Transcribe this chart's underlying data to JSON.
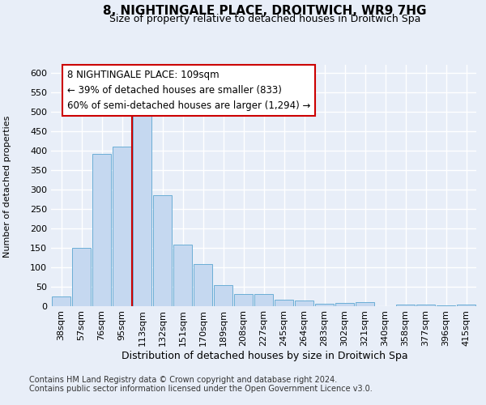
{
  "title": "8, NIGHTINGALE PLACE, DROITWICH, WR9 7HG",
  "subtitle": "Size of property relative to detached houses in Droitwich Spa",
  "xlabel": "Distribution of detached houses by size in Droitwich Spa",
  "ylabel": "Number of detached properties",
  "categories": [
    "38sqm",
    "57sqm",
    "76sqm",
    "95sqm",
    "113sqm",
    "132sqm",
    "151sqm",
    "170sqm",
    "189sqm",
    "208sqm",
    "227sqm",
    "245sqm",
    "264sqm",
    "283sqm",
    "302sqm",
    "321sqm",
    "340sqm",
    "358sqm",
    "377sqm",
    "396sqm",
    "415sqm"
  ],
  "values": [
    24,
    148,
    390,
    410,
    497,
    285,
    158,
    108,
    53,
    30,
    30,
    16,
    13,
    6,
    8,
    9,
    0,
    4,
    4,
    1,
    4
  ],
  "bar_color": "#c5d8f0",
  "bar_edge_color": "#6baed6",
  "vline_index": 4,
  "vline_color": "#cc0000",
  "annotation_line1": "8 NIGHTINGALE PLACE: 109sqm",
  "annotation_line2": "← 39% of detached houses are smaller (833)",
  "annotation_line3": "60% of semi-detached houses are larger (1,294) →",
  "ylim": [
    0,
    620
  ],
  "yticks": [
    0,
    50,
    100,
    150,
    200,
    250,
    300,
    350,
    400,
    450,
    500,
    550,
    600
  ],
  "footer_line1": "Contains HM Land Registry data © Crown copyright and database right 2024.",
  "footer_line2": "Contains public sector information licensed under the Open Government Licence v3.0.",
  "bg_color": "#e8eef8",
  "title_fontsize": 11,
  "subtitle_fontsize": 9,
  "xlabel_fontsize": 9,
  "ylabel_fontsize": 8,
  "footer_fontsize": 7,
  "tick_fontsize": 8,
  "annotation_fontsize": 8.5
}
